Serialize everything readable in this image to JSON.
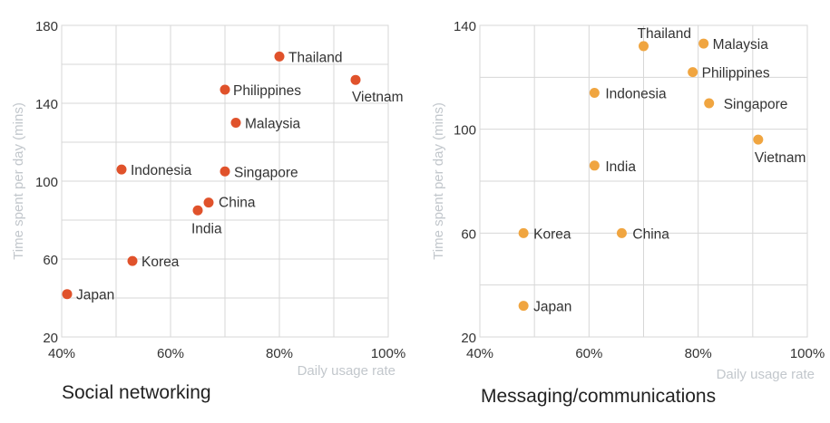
{
  "chart_data": [
    {
      "type": "scatter",
      "title": "Social networking",
      "xlabel": "Daily usage rate",
      "ylabel": "Time spent per day (mins)",
      "xlim": [
        0.4,
        1.0
      ],
      "ylim": [
        20,
        180
      ],
      "x_ticks": [
        0.4,
        0.6,
        0.8,
        1.0
      ],
      "x_tick_labels": [
        "40%",
        "60%",
        "80%",
        "100%"
      ],
      "y_ticks": [
        20,
        60,
        100,
        140,
        180
      ],
      "y_tick_labels": [
        "20",
        "60",
        "100",
        "140",
        "180"
      ],
      "grid": true,
      "color": "#e0522b",
      "points": [
        {
          "label": "Thailand",
          "x": 0.8,
          "y": 164
        },
        {
          "label": "Vietnam",
          "x": 0.94,
          "y": 152
        },
        {
          "label": "Philippines",
          "x": 0.7,
          "y": 147
        },
        {
          "label": "Malaysia",
          "x": 0.72,
          "y": 130
        },
        {
          "label": "Indonesia",
          "x": 0.51,
          "y": 106
        },
        {
          "label": "Singapore",
          "x": 0.7,
          "y": 105
        },
        {
          "label": "China",
          "x": 0.67,
          "y": 89
        },
        {
          "label": "India",
          "x": 0.65,
          "y": 85
        },
        {
          "label": "Korea",
          "x": 0.53,
          "y": 59
        },
        {
          "label": "Japan",
          "x": 0.41,
          "y": 42
        }
      ]
    },
    {
      "type": "scatter",
      "title": "Messaging/communications",
      "xlabel": "Daily usage rate",
      "ylabel": "Time spent per day (mins)",
      "xlim": [
        0.4,
        1.0
      ],
      "ylim": [
        20,
        140
      ],
      "x_ticks": [
        0.4,
        0.6,
        0.8,
        1.0
      ],
      "x_tick_labels": [
        "40%",
        "60%",
        "80%",
        "100%"
      ],
      "y_ticks": [
        20,
        60,
        100,
        140
      ],
      "y_tick_labels": [
        "20",
        "60",
        "100",
        "140"
      ],
      "grid": true,
      "color": "#f0a540",
      "points": [
        {
          "label": "Thailand",
          "x": 0.7,
          "y": 132
        },
        {
          "label": "Malaysia",
          "x": 0.81,
          "y": 133
        },
        {
          "label": "Philippines",
          "x": 0.79,
          "y": 122
        },
        {
          "label": "Indonesia",
          "x": 0.61,
          "y": 114
        },
        {
          "label": "Singapore",
          "x": 0.82,
          "y": 110
        },
        {
          "label": "Vietnam",
          "x": 0.91,
          "y": 96
        },
        {
          "label": "India",
          "x": 0.61,
          "y": 86
        },
        {
          "label": "Korea",
          "x": 0.48,
          "y": 60
        },
        {
          "label": "China",
          "x": 0.66,
          "y": 60
        },
        {
          "label": "Japan",
          "x": 0.48,
          "y": 32
        }
      ]
    }
  ]
}
